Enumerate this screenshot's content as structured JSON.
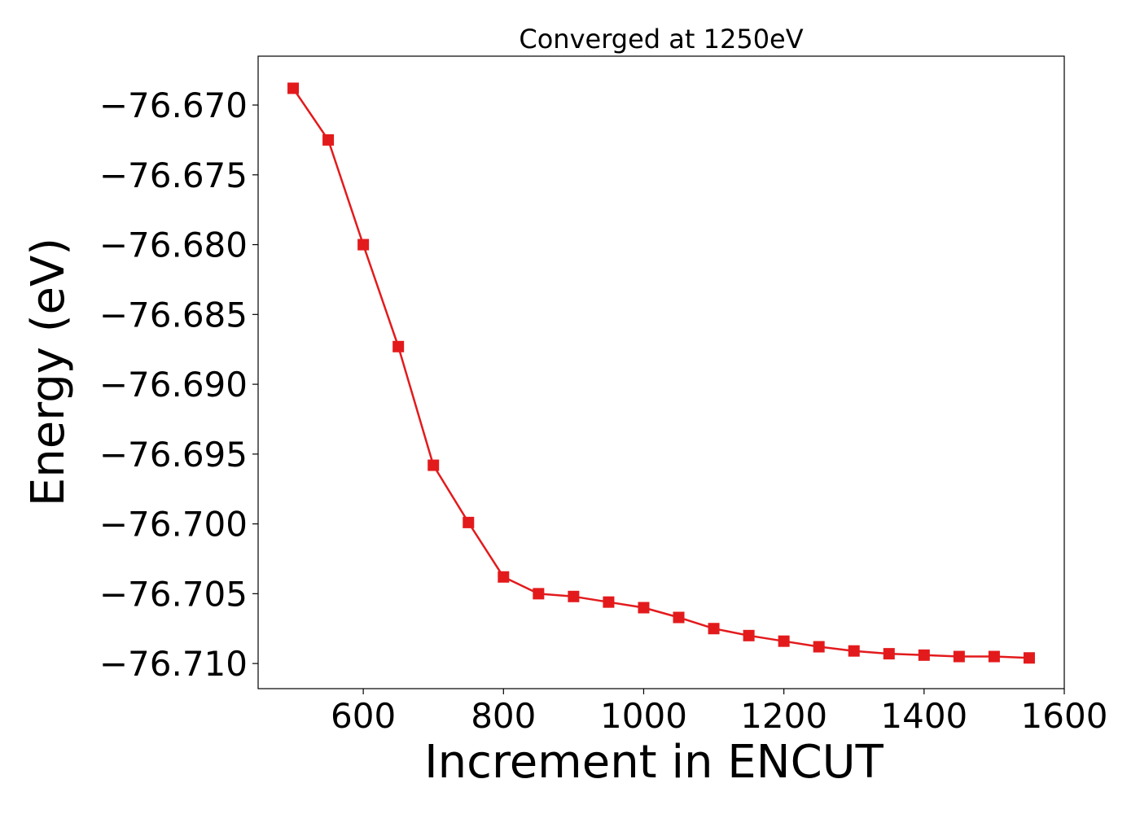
{
  "chart_data": {
    "type": "line",
    "title": "Converged at 1250eV",
    "xlabel": "Increment in ENCUT",
    "ylabel": "Energy (eV)",
    "xlim": [
      450,
      1600
    ],
    "ylim": [
      -76.7118,
      -76.6665
    ],
    "xticks": [
      600,
      800,
      1000,
      1200,
      1400,
      1600
    ],
    "xtick_labels": [
      "600",
      "800",
      "1000",
      "1200",
      "1400",
      "1600"
    ],
    "yticks": [
      -76.67,
      -76.675,
      -76.68,
      -76.685,
      -76.69,
      -76.695,
      -76.7,
      -76.705,
      -76.71
    ],
    "ytick_labels": [
      "−76.670",
      "−76.675",
      "−76.680",
      "−76.685",
      "−76.690",
      "−76.695",
      "−76.700",
      "−76.705",
      "−76.710"
    ],
    "grid": false,
    "series": [
      {
        "marker": "square",
        "color": "#e31a1c",
        "x": [
          500,
          550,
          600,
          650,
          700,
          750,
          800,
          850,
          900,
          950,
          1000,
          1050,
          1100,
          1150,
          1200,
          1250,
          1300,
          1350,
          1400,
          1450,
          1500,
          1550
        ],
        "y": [
          -76.6688,
          -76.6725,
          -76.68,
          -76.6873,
          -76.6958,
          -76.6999,
          -76.7038,
          -76.705,
          -76.7052,
          -76.7056,
          -76.706,
          -76.7067,
          -76.7075,
          -76.708,
          -76.7084,
          -76.7088,
          -76.7091,
          -76.7093,
          -76.7094,
          -76.7095,
          -76.7095,
          -76.7096
        ]
      }
    ]
  }
}
